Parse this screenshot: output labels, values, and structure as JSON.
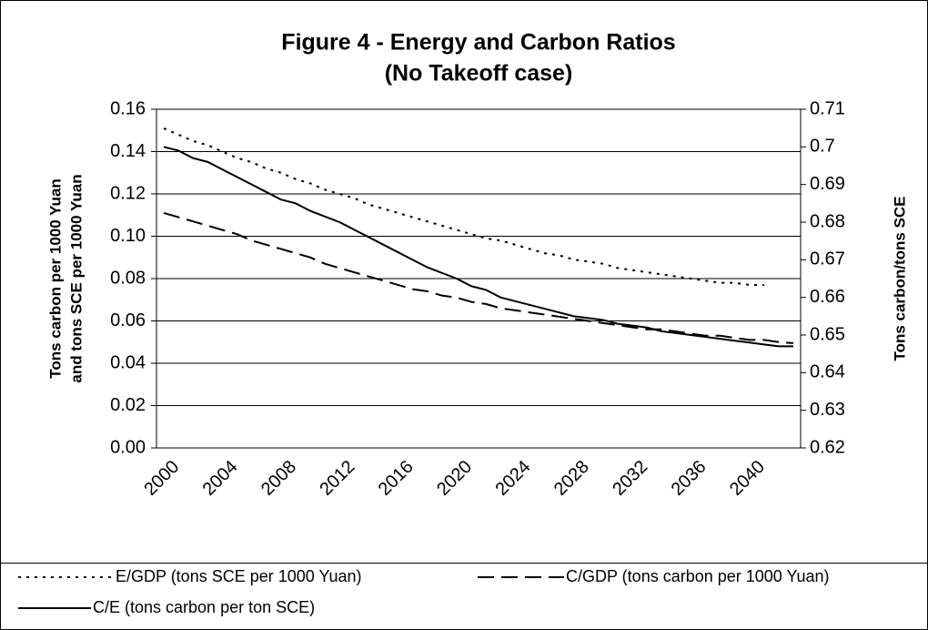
{
  "chart_data": {
    "type": "line",
    "title": [
      "Figure 4 - Energy and Carbon Ratios",
      "(No Takeoff case)"
    ],
    "ylabel": [
      "Tons carbon per 1000 Yuan",
      "and tons SCE per 1000 Yuan"
    ],
    "y2label": "Tons carbon/tons SCE",
    "categories": [
      "2000",
      null,
      null,
      null,
      "2004",
      null,
      null,
      null,
      "2008",
      null,
      null,
      null,
      "2012",
      null,
      null,
      null,
      "2016",
      null,
      null,
      null,
      "2020",
      null,
      null,
      null,
      "2024",
      null,
      null,
      null,
      "2028",
      null,
      null,
      null,
      "2032",
      null,
      null,
      null,
      "2036",
      null,
      null,
      null,
      "2040",
      null,
      null,
      null
    ],
    "ylim": [
      0,
      0.16
    ],
    "yticks": [
      {
        "value": 0,
        "label": "0.00"
      },
      0.02,
      0.04,
      0.06,
      0.08,
      {
        "value": 0.1,
        "label": "0.10"
      },
      0.12,
      0.14,
      0.16
    ],
    "y2lim": [
      0.62,
      0.71
    ],
    "y2ticks": [
      0.62,
      0.63,
      0.64,
      0.65,
      0.66,
      0.67,
      0.68,
      0.69,
      0.7,
      0.71
    ],
    "grid": true,
    "legend": "bottom",
    "series": [
      {
        "name": "E/GDP (tons SCE per 1000 Yuan)",
        "color": "#000000",
        "style": "dotted",
        "values": [
          0.151,
          0.148,
          0.145,
          0.143,
          0.14,
          0.137,
          0.135,
          0.132,
          0.13,
          0.127,
          0.125,
          0.122,
          0.12,
          0.118,
          0.115,
          0.113,
          0.111,
          0.109,
          0.107,
          0.105,
          0.103,
          0.101,
          0.099,
          0.098,
          0.096,
          0.094,
          0.092,
          0.091,
          0.089,
          0.088,
          0.087,
          0.085,
          0.084,
          0.083,
          0.082,
          0.081,
          0.08,
          0.079,
          0.078,
          0.078,
          0.077,
          0.077,
          null,
          null
        ]
      },
      {
        "name": "C/GDP (tons carbon per 1000 Yuan)",
        "color": "#000000",
        "style": "dashed",
        "values": [
          0.111,
          0.109,
          0.107,
          0.105,
          0.103,
          0.101,
          0.098,
          0.096,
          0.094,
          0.092,
          0.09,
          0.087,
          0.085,
          0.083,
          0.081,
          0.079,
          0.077,
          0.075,
          0.074,
          0.072,
          0.071,
          0.069,
          0.068,
          0.066,
          0.065,
          0.064,
          0.063,
          0.062,
          0.061,
          0.06,
          0.059,
          0.058,
          0.057,
          0.056,
          0.056,
          0.055,
          0.054,
          0.053,
          0.053,
          0.052,
          0.051,
          0.051,
          0.05,
          0.0495
        ]
      },
      {
        "name": "C/E (tons carbon per ton SCE)",
        "color": "#000000",
        "style": "solid",
        "axis": "y2",
        "values": [
          0.7,
          0.699,
          0.697,
          0.696,
          0.694,
          0.692,
          0.69,
          0.688,
          0.686,
          0.685,
          0.683,
          0.6815,
          0.68,
          0.678,
          0.676,
          0.674,
          0.672,
          0.67,
          0.668,
          0.6665,
          0.665,
          0.663,
          0.662,
          0.66,
          0.659,
          0.658,
          0.657,
          0.656,
          0.655,
          0.6545,
          0.654,
          0.653,
          0.6525,
          0.652,
          0.651,
          0.6505,
          0.65,
          0.6495,
          0.649,
          0.6485,
          0.648,
          0.6475,
          0.647,
          0.647
        ]
      }
    ]
  }
}
